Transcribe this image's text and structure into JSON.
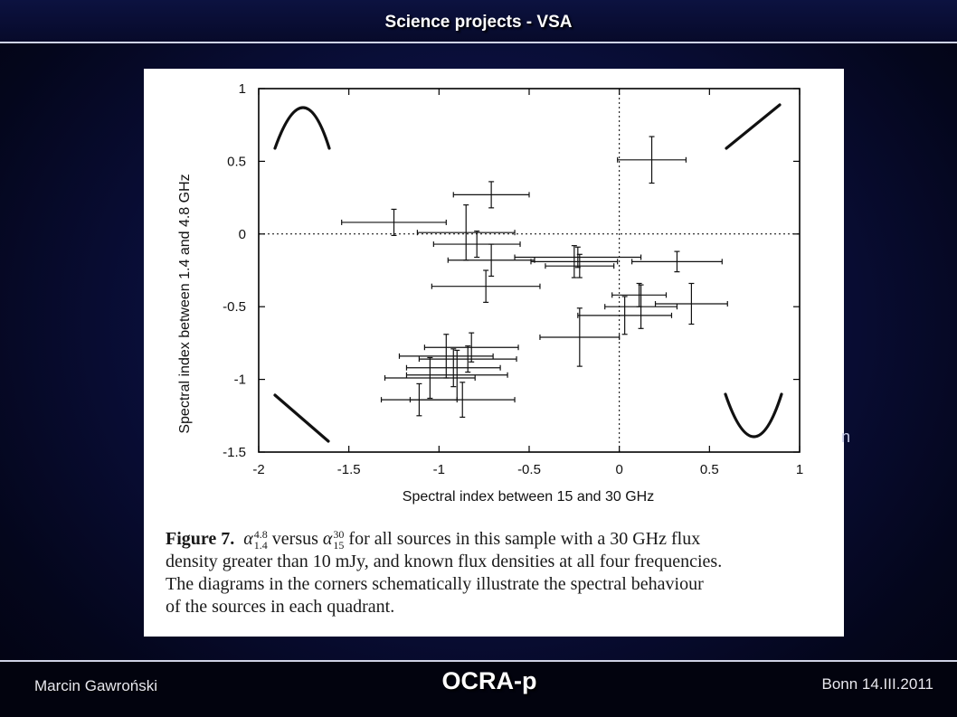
{
  "slide": {
    "title": "Science projects - VSA",
    "stray_text": "n"
  },
  "footer": {
    "author": "Marcin Gawroński",
    "project": "OCRA-p",
    "date": "Bonn 14.III.2011"
  },
  "caption": {
    "label": "Figure 7.",
    "alpha_symbol": "α",
    "sym1_sup": "4.8",
    "sym1_sub": "1.4",
    "versus_text": "versus",
    "sym2_sup": "30",
    "sym2_sub": "15",
    "line1_rest": "for all sources in this sample with a 30 GHz flux",
    "line2": "density greater than 10 mJy, and known flux densities at all four frequencies.",
    "line3": "The diagrams in the corners schematically illustrate the spectral behaviour",
    "line4": "of the sources in each quadrant."
  },
  "chart_data": {
    "type": "scatter",
    "xlabel": "Spectral index between 15 and 30 GHz",
    "ylabel": "Spectral index between 1.4 and 4.8 GHz",
    "xlim": [
      -2,
      1
    ],
    "ylim": [
      -1.5,
      1
    ],
    "x_ticks": [
      -2,
      -1.5,
      -1,
      -0.5,
      0,
      0.5,
      1
    ],
    "x_tick_labels": [
      "-2",
      "-1.5",
      "-1",
      "-0.5",
      "0",
      "0.5",
      "1"
    ],
    "y_ticks": [
      -1.5,
      -1,
      -0.5,
      0,
      0.5,
      1
    ],
    "y_tick_labels": [
      "-1.5",
      "-1",
      "-0.5",
      "0",
      "0.5",
      "1"
    ],
    "reference_lines": {
      "x": 0,
      "y": 0,
      "style": "dotted"
    },
    "points": [
      {
        "x": 0.18,
        "y": 0.51,
        "xerr": 0.19,
        "yerr": 0.16
      },
      {
        "x": -0.71,
        "y": 0.27,
        "xerr": 0.21,
        "yerr": 0.09
      },
      {
        "x": -1.25,
        "y": 0.08,
        "xerr": 0.29,
        "yerr": 0.09
      },
      {
        "x": -0.85,
        "y": 0.01,
        "xerr": 0.27,
        "yerr": 0.19
      },
      {
        "x": -0.79,
        "y": -0.07,
        "xerr": 0.24,
        "yerr": 0.09
      },
      {
        "x": -0.71,
        "y": -0.18,
        "xerr": 0.24,
        "yerr": 0.11
      },
      {
        "x": -0.23,
        "y": -0.16,
        "xerr": 0.35,
        "yerr": 0.07
      },
      {
        "x": -0.25,
        "y": -0.19,
        "xerr": 0.24,
        "yerr": 0.11
      },
      {
        "x": -0.22,
        "y": -0.22,
        "xerr": 0.19,
        "yerr": 0.08
      },
      {
        "x": 0.32,
        "y": -0.19,
        "xerr": 0.25,
        "yerr": 0.07
      },
      {
        "x": -0.74,
        "y": -0.36,
        "xerr": 0.3,
        "yerr": 0.11
      },
      {
        "x": 0.11,
        "y": -0.42,
        "xerr": 0.15,
        "yerr": 0.08
      },
      {
        "x": 0.12,
        "y": -0.5,
        "xerr": 0.2,
        "yerr": 0.15
      },
      {
        "x": 0.4,
        "y": -0.48,
        "xerr": 0.2,
        "yerr": 0.14
      },
      {
        "x": 0.03,
        "y": -0.56,
        "xerr": 0.26,
        "yerr": 0.13
      },
      {
        "x": -0.22,
        "y": -0.71,
        "xerr": 0.22,
        "yerr": 0.2
      },
      {
        "x": -0.82,
        "y": -0.78,
        "xerr": 0.26,
        "yerr": 0.1
      },
      {
        "x": -0.96,
        "y": -0.84,
        "xerr": 0.26,
        "yerr": 0.15
      },
      {
        "x": -0.84,
        "y": -0.86,
        "xerr": 0.27,
        "yerr": 0.09
      },
      {
        "x": -0.92,
        "y": -0.92,
        "xerr": 0.26,
        "yerr": 0.13
      },
      {
        "x": -1.05,
        "y": -0.99,
        "xerr": 0.25,
        "yerr": 0.14
      },
      {
        "x": -0.9,
        "y": -0.97,
        "xerr": 0.28,
        "yerr": 0.17
      },
      {
        "x": -1.11,
        "y": -1.14,
        "xerr": 0.21,
        "yerr": 0.11
      },
      {
        "x": -0.87,
        "y": -1.14,
        "xerr": 0.29,
        "yerr": 0.12
      }
    ],
    "corner_glyphs": [
      {
        "quadrant": "top-left",
        "shape": "peaked"
      },
      {
        "quadrant": "top-right",
        "shape": "rising"
      },
      {
        "quadrant": "bottom-left",
        "shape": "falling"
      },
      {
        "quadrant": "bottom-right",
        "shape": "u-shaped"
      }
    ]
  }
}
